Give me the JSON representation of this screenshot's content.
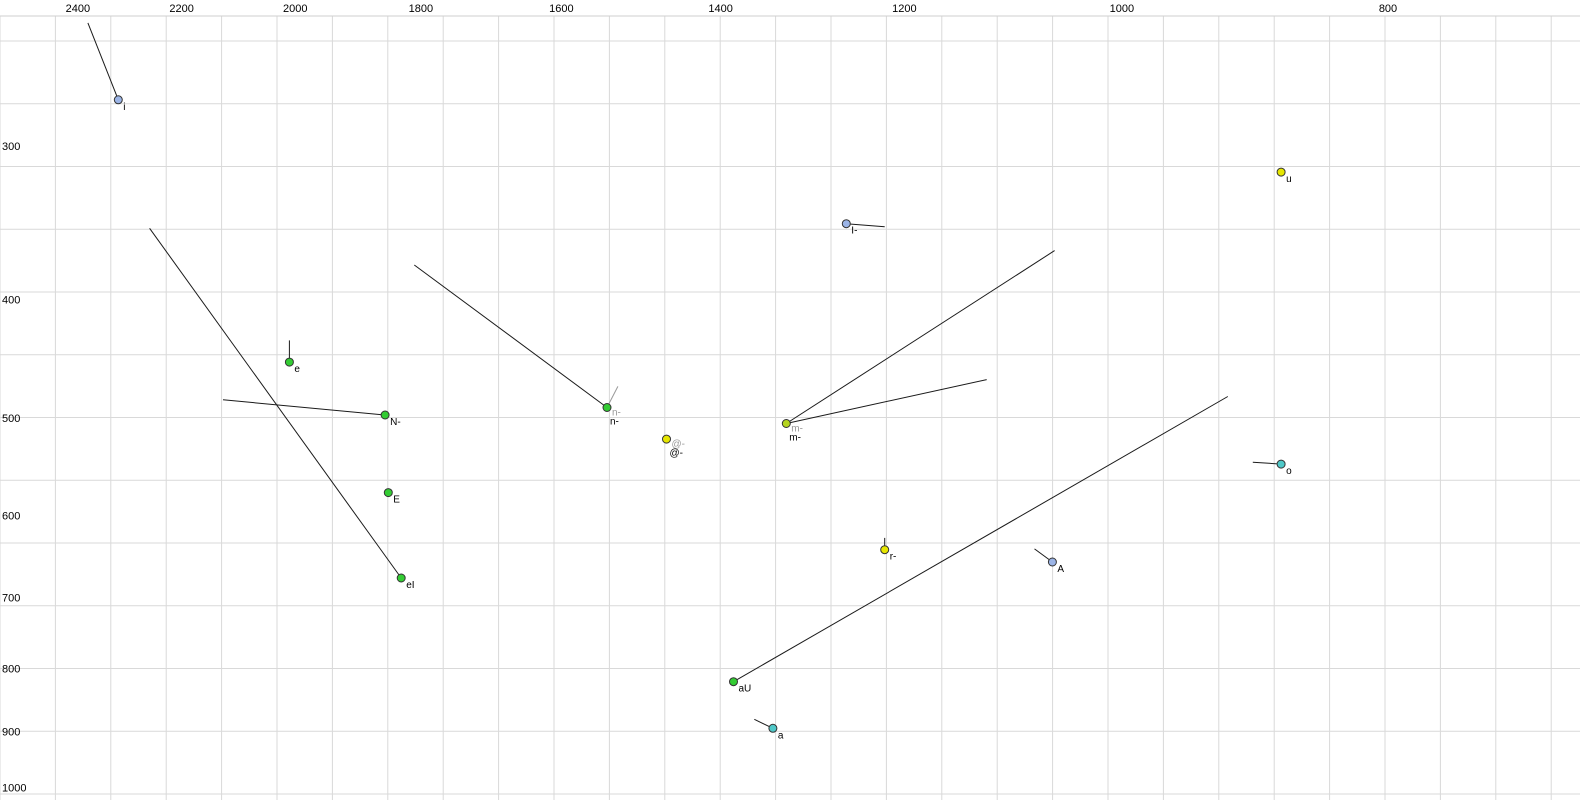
{
  "chart_data": {
    "type": "scatter",
    "title": "",
    "xlabel": "",
    "ylabel": "",
    "description": "Vowel formant plot: F2 (Hz, log scale, decreasing rightward) on top axis, F1 (Hz, log scale, increasing downward) on left axis, with phoneme points and formant-trajectory line segments",
    "x_axis": {
      "scale": "log",
      "reversed": true,
      "ticks": [
        2400,
        2200,
        2000,
        1800,
        1600,
        1400,
        1200,
        1000,
        800
      ],
      "range_left_hz": 2562,
      "range_right_hz": 681
    },
    "y_axis": {
      "scale": "log",
      "reversed": false,
      "ticks": [
        300,
        400,
        500,
        600,
        700,
        800,
        900,
        1000
      ],
      "range_top_hz": 228,
      "range_bottom_hz": 1024
    },
    "palette": {
      "green": "#33cc33",
      "yellow": "#e6e600",
      "yellow_green": "#b4d41e",
      "cyan": "#4fc8c8",
      "blue": "#9bb4e6",
      "gray": "#999999",
      "line": "#1a1a1a",
      "point_stroke": "#333333",
      "grid": "#d9d9d9"
    },
    "points": [
      {
        "label": "i",
        "f2": 2320,
        "f1": 275,
        "color": "blue"
      },
      {
        "label": "u",
        "f2": 875,
        "f1": 315,
        "color": "yellow"
      },
      {
        "label": "I-",
        "f2": 1260,
        "f1": 347,
        "color": "blue"
      },
      {
        "label": "e",
        "f2": 2010,
        "f1": 450,
        "color": "green"
      },
      {
        "label": "n-",
        "f2": 1540,
        "f1": 490,
        "color": "green",
        "label2": "n-"
      },
      {
        "label": "N-",
        "f2": 1855,
        "f1": 497,
        "color": "green"
      },
      {
        "label": "m-",
        "f2": 1325,
        "f1": 505,
        "color": "yellow_green",
        "label2": "m-"
      },
      {
        "label": "@-",
        "f2": 1465,
        "f1": 520,
        "color": "yellow",
        "label2": "@-"
      },
      {
        "label": "o",
        "f2": 875,
        "f1": 545,
        "color": "cyan"
      },
      {
        "label": "E",
        "f2": 1850,
        "f1": 575,
        "color": "green"
      },
      {
        "label": "r-",
        "f2": 1220,
        "f1": 640,
        "color": "yellow"
      },
      {
        "label": "A",
        "f2": 1060,
        "f1": 655,
        "color": "blue"
      },
      {
        "label": "eI",
        "f2": 1830,
        "f1": 675,
        "color": "green"
      },
      {
        "label": "aU",
        "f2": 1385,
        "f1": 820,
        "color": "green"
      },
      {
        "label": "a",
        "f2": 1340,
        "f1": 895,
        "color": "cyan"
      }
    ],
    "segments": [
      {
        "from": [
          2380,
          238
        ],
        "to": [
          2320,
          275
        ],
        "color": "line"
      },
      {
        "from": [
          2260,
          350
        ],
        "to": [
          1830,
          675
        ],
        "color": "line"
      },
      {
        "from": [
          2125,
          483
        ],
        "to": [
          1855,
          497
        ],
        "color": "line"
      },
      {
        "from": [
          1810,
          375
        ],
        "to": [
          1540,
          490
        ],
        "color": "line"
      },
      {
        "from": [
          1526,
          471
        ],
        "to": [
          1540,
          490
        ],
        "color": "gray"
      },
      {
        "from": [
          1325,
          505
        ],
        "to": [
          1058,
          365
        ],
        "color": "line"
      },
      {
        "from": [
          1325,
          505
        ],
        "to": [
          1120,
          465
        ],
        "color": "line"
      },
      {
        "from": [
          1385,
          820
        ],
        "to": [
          915,
          480
        ],
        "color": "line"
      },
      {
        "from": [
          1260,
          347
        ],
        "to": [
          1220,
          349
        ],
        "color": "line"
      },
      {
        "from": [
          896,
          543
        ],
        "to": [
          875,
          545
        ],
        "color": "line"
      },
      {
        "from": [
          2010,
          432
        ],
        "to": [
          2010,
          450
        ],
        "color": "line"
      },
      {
        "from": [
          1361,
          880
        ],
        "to": [
          1340,
          895
        ],
        "color": "line"
      },
      {
        "from": [
          1076,
          639
        ],
        "to": [
          1060,
          655
        ],
        "color": "line"
      },
      {
        "from": [
          1220,
          626
        ],
        "to": [
          1220,
          640
        ],
        "color": "line"
      }
    ]
  }
}
